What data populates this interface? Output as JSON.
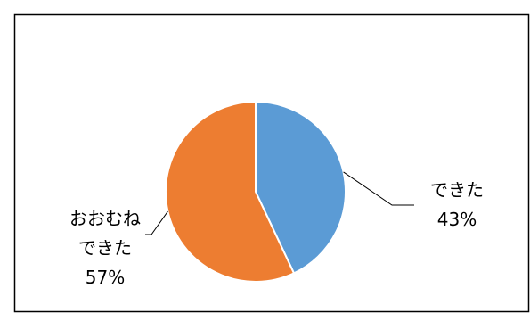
{
  "chart_data": {
    "type": "pie",
    "slices": [
      {
        "label_lines": [
          "できた",
          "43%"
        ],
        "value": 43,
        "color": "#5B9BD5"
      },
      {
        "label_lines": [
          "おおむね",
          "できた",
          "57%"
        ],
        "value": 57,
        "color": "#ED7D31"
      }
    ],
    "start_angle_deg": 0,
    "direction": "clockwise",
    "slice_border_color": "#FFFFFF",
    "leader_line_color": "#000000",
    "frame_color": "#000000",
    "legend": "none",
    "grid": false
  }
}
